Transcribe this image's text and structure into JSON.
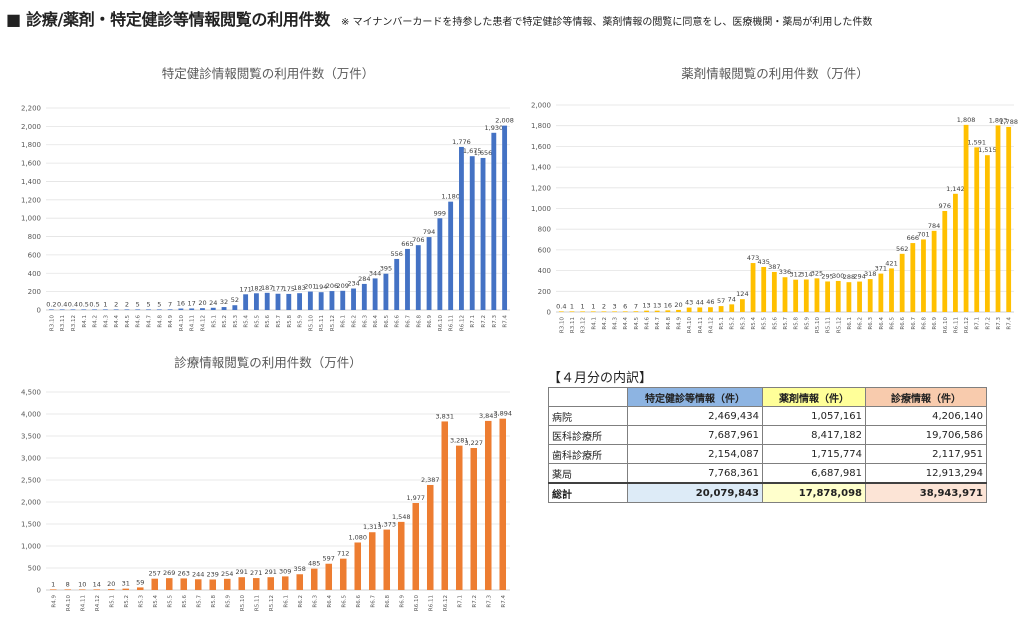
{
  "header": {
    "title": "■ 診療/薬剤・特定健診等情報閲覧の利用件数",
    "note": "※ マイナンバーカードを持参した患者で特定健診等情報、薬剤情報の閲覧に同意をし、医療機関・薬局が利用した件数"
  },
  "chart_data": [
    {
      "type": "bar",
      "title": "特定健診情報閲覧の利用件数（万件）",
      "color": "#4472C4",
      "ylim": [
        0,
        2200
      ],
      "yticks": [
        0,
        200,
        400,
        600,
        800,
        1000,
        1200,
        1400,
        1600,
        1800,
        2000,
        2200
      ],
      "grid": true,
      "categories": [
        "R3.10",
        "R3.11",
        "R3.12",
        "R4.1",
        "R4.2",
        "R4.3",
        "R4.4",
        "R4.5",
        "R4.6",
        "R4.7",
        "R4.8",
        "R4.9",
        "R4.10",
        "R4.11",
        "R4.12",
        "R5.1",
        "R5.2",
        "R5.3",
        "R5.4",
        "R5.5",
        "R5.6",
        "R5.7",
        "R5.8",
        "R5.9",
        "R5.10",
        "R5.11",
        "R5.12",
        "R6.1",
        "R6.2",
        "R6.3",
        "R6.4",
        "R6.5",
        "R6.6",
        "R6.7",
        "R6.8",
        "R6.9",
        "R6.10",
        "R6.11",
        "R6.12",
        "R7.1",
        "R7.2",
        "R7.3",
        "R7.4"
      ],
      "values": [
        0.2,
        0.4,
        0.4,
        0.5,
        0.5,
        1,
        2,
        2,
        5,
        5,
        5,
        7,
        16,
        17,
        20,
        24,
        32,
        52,
        171,
        182,
        187,
        177,
        175,
        183,
        201,
        194,
        206,
        209,
        234,
        284,
        344,
        395,
        556,
        665,
        706,
        794,
        999,
        1180,
        1776,
        1675,
        1656,
        1930,
        2008
      ],
      "labels": [
        "0.2",
        "0.4",
        "0.4",
        "0.5",
        "0.5",
        "1",
        "2",
        "2",
        "5",
        "5",
        "5",
        "7",
        "16",
        "17",
        "20",
        "24",
        "32",
        "52",
        "171",
        "182",
        "187",
        "177",
        "175",
        "183",
        "201",
        "194",
        "206",
        "209",
        "234",
        "284",
        "344",
        "395",
        "556",
        "665",
        "706",
        "794",
        "999",
        "1,180",
        "1,776",
        "1,675",
        "1,656",
        "1,930",
        "2,008"
      ]
    },
    {
      "type": "bar",
      "title": "薬剤情報閲覧の利用件数（万件）",
      "color": "#FFC000",
      "ylim": [
        0,
        2000
      ],
      "yticks": [
        0,
        200,
        400,
        600,
        800,
        1000,
        1200,
        1400,
        1600,
        1800,
        2000
      ],
      "grid": true,
      "categories": [
        "R3.10",
        "R3.11",
        "R3.12",
        "R4.1",
        "R4.2",
        "R4.3",
        "R4.4",
        "R4.5",
        "R4.6",
        "R4.7",
        "R4.8",
        "R4.9",
        "R4.10",
        "R4.11",
        "R4.12",
        "R5.1",
        "R5.2",
        "R5.3",
        "R5.4",
        "R5.5",
        "R5.6",
        "R5.7",
        "R5.8",
        "R5.9",
        "R5.10",
        "R5.11",
        "R5.12",
        "R6.1",
        "R6.2",
        "R6.3",
        "R6.4",
        "R6.5",
        "R6.6",
        "R6.7",
        "R6.8",
        "R6.9",
        "R6.10",
        "R6.11",
        "R6.12",
        "R7.1",
        "R7.2",
        "R7.3",
        "R7.4"
      ],
      "values": [
        0.4,
        1,
        1,
        1,
        2,
        3,
        6,
        7,
        13,
        13,
        16,
        20,
        43,
        44,
        46,
        57,
        74,
        124,
        473,
        435,
        387,
        336,
        312,
        314,
        325,
        295,
        300,
        288,
        294,
        318,
        371,
        421,
        562,
        666,
        701,
        784,
        976,
        1142,
        1808,
        1591,
        1515,
        1803,
        1788
      ],
      "labels": [
        "0.4",
        "1",
        "1",
        "1",
        "2",
        "3",
        "6",
        "7",
        "13",
        "13",
        "16",
        "20",
        "43",
        "44",
        "46",
        "57",
        "74",
        "124",
        "473",
        "435",
        "387",
        "336",
        "312",
        "314",
        "325",
        "295",
        "300",
        "288",
        "294",
        "318",
        "371",
        "421",
        "562",
        "666",
        "701",
        "784",
        "976",
        "1,142",
        "1,808",
        "1,591",
        "1,515",
        "1,803",
        "1,788"
      ]
    },
    {
      "type": "bar",
      "title": "診療情報閲覧の利用件数（万件）",
      "color": "#ED7D31",
      "ylim": [
        0,
        4500
      ],
      "yticks": [
        0,
        500,
        1000,
        1500,
        2000,
        2500,
        3000,
        3500,
        4000,
        4500
      ],
      "grid": true,
      "categories": [
        "R4.9",
        "R4.10",
        "R4.11",
        "R4.12",
        "R5.1",
        "R5.2",
        "R5.3",
        "R5.4",
        "R5.5",
        "R5.6",
        "R5.7",
        "R5.8",
        "R5.9",
        "R5.10",
        "R5.11",
        "R5.12",
        "R6.1",
        "R6.2",
        "R6.3",
        "R6.4",
        "R6.5",
        "R6.6",
        "R6.7",
        "R6.8",
        "R6.9",
        "R6.10",
        "R6.11",
        "R6.12",
        "R7.1",
        "R7.2",
        "R7.3",
        "R7.4"
      ],
      "values": [
        1,
        8,
        10,
        14,
        20,
        31,
        59,
        257,
        269,
        263,
        244,
        239,
        254,
        291,
        271,
        291,
        309,
        358,
        485,
        597,
        712,
        1080,
        1313,
        1373,
        1548,
        1977,
        2387,
        3831,
        3281,
        3227,
        3843,
        3894
      ],
      "labels": [
        "1",
        "8",
        "10",
        "14",
        "20",
        "31",
        "59",
        "257",
        "269",
        "263",
        "244",
        "239",
        "254",
        "291",
        "271",
        "291",
        "309",
        "358",
        "485",
        "597",
        "712",
        "1,080",
        "1,313",
        "1,373",
        "1,548",
        "1,977",
        "2,387",
        "3,831",
        "3,281",
        "3,227",
        "3,843",
        "3,894"
      ]
    },
    {
      "type": "table",
      "title": "【４月分の内訳】",
      "columns": [
        "",
        "特定健診等情報（件）",
        "薬剤情報（件）",
        "診療情報（件）"
      ],
      "header_colors": [
        "#FFFFFF",
        "#8DB4E2",
        "#FFFF99",
        "#F8CBAD"
      ],
      "total_colors": [
        "#FFFFFF",
        "#DDEBF7",
        "#FFFFCC",
        "#FCE4D6"
      ],
      "rows": [
        [
          "病院",
          "2,469,434",
          "1,057,161",
          "4,206,140"
        ],
        [
          "医科診療所",
          "7,687,961",
          "8,417,182",
          "19,706,586"
        ],
        [
          "歯科診療所",
          "2,154,087",
          "1,715,774",
          "2,117,951"
        ],
        [
          "薬局",
          "7,768,361",
          "6,687,981",
          "12,913,294"
        ]
      ],
      "total": [
        "総計",
        "20,079,843",
        "17,878,098",
        "38,943,971"
      ]
    }
  ]
}
